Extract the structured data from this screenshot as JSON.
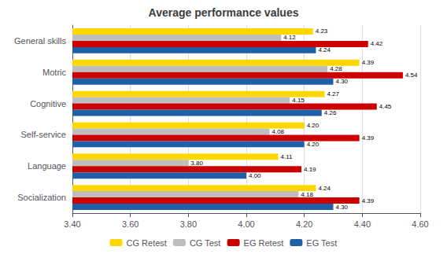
{
  "chart_data": {
    "type": "bar",
    "orientation": "horizontal",
    "title": "Average performance values",
    "categories": [
      "General skills",
      "Motric",
      "Cognitive",
      "Self-service",
      "Language",
      "Socialization"
    ],
    "series": [
      {
        "name": "CG Retest",
        "color": "#FFD700",
        "values": [
          4.23,
          4.39,
          4.27,
          4.2,
          4.11,
          4.24
        ],
        "value_labels": [
          "4.23",
          "4.39",
          "4.27",
          "4.20",
          "4.11",
          "4.24"
        ]
      },
      {
        "name": "CG Test",
        "color": "#BEBEBE",
        "values": [
          4.12,
          4.28,
          4.15,
          4.08,
          3.8,
          4.18
        ],
        "value_labels": [
          "4.12",
          "4.28",
          "4.15",
          "4.08",
          "3.80",
          "4.18"
        ]
      },
      {
        "name": "EG Retest",
        "color": "#CC0000",
        "values": [
          4.42,
          4.54,
          4.45,
          4.39,
          4.19,
          4.39
        ],
        "value_labels": [
          "4.42",
          "4.54",
          "4.45",
          "4.39",
          "4.19",
          "4.39"
        ]
      },
      {
        "name": "EG Test",
        "color": "#1F5FA6",
        "values": [
          4.24,
          4.3,
          4.26,
          4.2,
          4.0,
          4.3
        ],
        "value_labels": [
          "4.24",
          "4.30",
          "4.26",
          "4.20",
          "4.00",
          "4.30"
        ]
      }
    ],
    "xlim": [
      3.4,
      4.6
    ],
    "xticks": [
      {
        "value": 3.4,
        "label": "3.40"
      },
      {
        "value": 3.6,
        "label": "3.60"
      },
      {
        "value": 3.8,
        "label": "3.80"
      },
      {
        "value": 4.0,
        "label": "4.00"
      },
      {
        "value": 4.2,
        "label": "4.20"
      },
      {
        "value": 4.4,
        "label": "4.40"
      },
      {
        "value": 4.6,
        "label": "4.60"
      }
    ],
    "grid": true,
    "legend": "bottom",
    "data_labels": true
  }
}
